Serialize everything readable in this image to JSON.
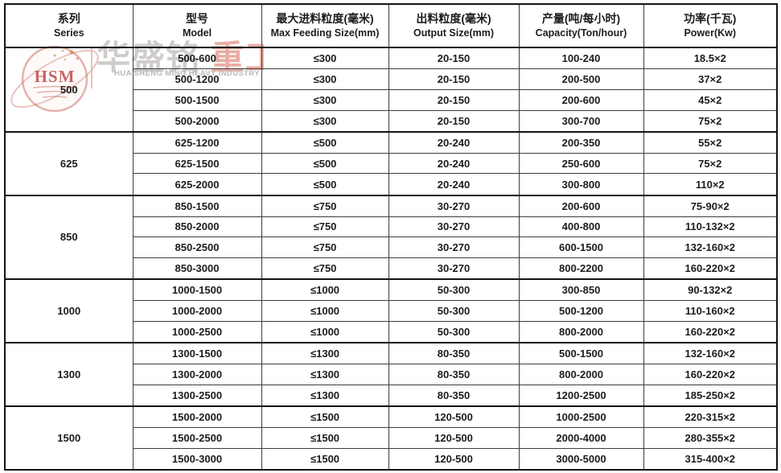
{
  "watermark": {
    "monogram": "HSM",
    "brand_zh_gray": "华盛铭",
    "brand_zh_red": "重工",
    "brand_en": "HUA SHENG MING HEAVY INDUSTRY",
    "colors": {
      "monogram": "#b73a3a",
      "outline": "#cd7468",
      "stars": "#b07838",
      "zh_gray": "#a29a9a",
      "zh_red": "#d76a55",
      "en_gray": "#aaa6a6",
      "divider": "#e0b4ae"
    }
  },
  "colors": {
    "border_dark": "#141414",
    "border_light": "#3d3d3d",
    "text": "#1c1c1c",
    "background": "#ffffff"
  },
  "table": {
    "columns": [
      {
        "zh": "系列",
        "en": "Series"
      },
      {
        "zh": "型号",
        "en": "Model"
      },
      {
        "zh": "最大进料粒度(毫米)",
        "en": "Max Feeding Size(mm)"
      },
      {
        "zh": "出料粒度(毫米)",
        "en": "Output Size(mm)"
      },
      {
        "zh": "产量(吨/每小时)",
        "en": "Capacity(Ton/hour)"
      },
      {
        "zh": "功率(千瓦)",
        "en": "Power(Kw)"
      }
    ],
    "groups": [
      {
        "series": "500",
        "rows": [
          [
            "500-600",
            "≤300",
            "20-150",
            "100-240",
            "18.5×2"
          ],
          [
            "500-1200",
            "≤300",
            "20-150",
            "200-500",
            "37×2"
          ],
          [
            "500-1500",
            "≤300",
            "20-150",
            "200-600",
            "45×2"
          ],
          [
            "500-2000",
            "≤300",
            "20-150",
            "300-700",
            "75×2"
          ]
        ]
      },
      {
        "series": "625",
        "rows": [
          [
            "625-1200",
            "≤500",
            "20-240",
            "200-350",
            "55×2"
          ],
          [
            "625-1500",
            "≤500",
            "20-240",
            "250-600",
            "75×2"
          ],
          [
            "625-2000",
            "≤500",
            "20-240",
            "300-800",
            "110×2"
          ]
        ]
      },
      {
        "series": "850",
        "rows": [
          [
            "850-1500",
            "≤750",
            "30-270",
            "200-600",
            "75-90×2"
          ],
          [
            "850-2000",
            "≤750",
            "30-270",
            "400-800",
            "110-132×2"
          ],
          [
            "850-2500",
            "≤750",
            "30-270",
            "600-1500",
            "132-160×2"
          ],
          [
            "850-3000",
            "≤750",
            "30-270",
            "800-2200",
            "160-220×2"
          ]
        ]
      },
      {
        "series": "1000",
        "rows": [
          [
            "1000-1500",
            "≤1000",
            "50-300",
            "300-850",
            "90-132×2"
          ],
          [
            "1000-2000",
            "≤1000",
            "50-300",
            "500-1200",
            "110-160×2"
          ],
          [
            "1000-2500",
            "≤1000",
            "50-300",
            "800-2000",
            "160-220×2"
          ]
        ]
      },
      {
        "series": "1300",
        "rows": [
          [
            "1300-1500",
            "≤1300",
            "80-350",
            "500-1500",
            "132-160×2"
          ],
          [
            "1300-2000",
            "≤1300",
            "80-350",
            "800-2000",
            "160-220×2"
          ],
          [
            "1300-2500",
            "≤1300",
            "80-350",
            "1200-2500",
            "185-250×2"
          ]
        ]
      },
      {
        "series": "1500",
        "rows": [
          [
            "1500-2000",
            "≤1500",
            "120-500",
            "1000-2500",
            "220-315×2"
          ],
          [
            "1500-2500",
            "≤1500",
            "120-500",
            "2000-4000",
            "280-355×2"
          ],
          [
            "1500-3000",
            "≤1500",
            "120-500",
            "3000-5000",
            "315-400×2"
          ]
        ]
      }
    ]
  }
}
